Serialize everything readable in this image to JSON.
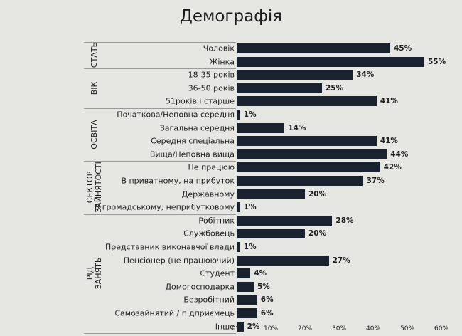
{
  "chart_data": {
    "type": "bar",
    "orientation": "horizontal",
    "title": "Демографія",
    "xlim": [
      0,
      60
    ],
    "xticks": [
      "0%",
      "10%",
      "20%",
      "30%",
      "40%",
      "50%",
      "60%"
    ],
    "groups": [
      {
        "name": "СТАТЬ",
        "categories": [
          "Чоловік",
          "Жінка"
        ],
        "values": [
          45,
          55
        ]
      },
      {
        "name": "ВІК",
        "categories": [
          "18-35 років",
          "36-50 років",
          "51років і старше"
        ],
        "values": [
          34,
          25,
          41
        ]
      },
      {
        "name": "ОСВІТА",
        "categories": [
          "Початкова/Неповна середня",
          "Загальна середня",
          "Середня спеціальна",
          "Вища/Неповна вища"
        ],
        "values": [
          1,
          14,
          41,
          44
        ]
      },
      {
        "name": "СЕКТОР ЗАЙНЯТОСТІ",
        "categories": [
          "Не працюю",
          "В приватному, на прибуток",
          "Державному",
          "В громадському, неприбутковому"
        ],
        "values": [
          42,
          37,
          20,
          1
        ]
      },
      {
        "name": "РІД ЗАНЯТЬ",
        "categories": [
          "Робітник",
          "Службовець",
          "Представник виконавчої влади",
          "Пенсіонер (не працюючий)",
          "Студент",
          "Домогосподарка",
          "Безробітний",
          "Самозайнятий / підприємець",
          "Інше"
        ],
        "values": [
          28,
          20,
          1,
          27,
          4,
          5,
          6,
          6,
          2
        ]
      }
    ],
    "bar_color": "#1a2230"
  }
}
